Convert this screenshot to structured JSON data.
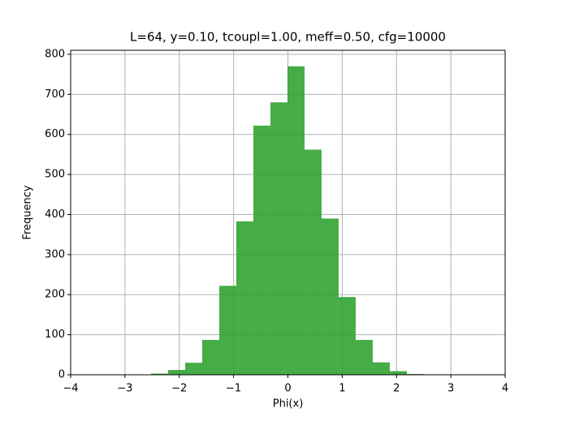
{
  "chart_data": {
    "type": "histogram",
    "title": "L=64, y=0.10, tcoupl=1.00, meff=0.50, cfg=10000",
    "xlabel": "Phi(x)",
    "ylabel": "Frequency",
    "bins": [
      -2.52,
      -2.206,
      -1.892,
      -1.578,
      -1.264,
      -0.95,
      -0.636,
      -0.322,
      -0.008,
      0.306,
      0.62,
      0.934,
      1.248,
      1.562,
      1.876,
      2.19,
      2.504
    ],
    "values": [
      3,
      12,
      30,
      87,
      222,
      383,
      622,
      680,
      770,
      562,
      390,
      194,
      87,
      31,
      9,
      2
    ],
    "color": "#2ca02c",
    "alpha": 0.88,
    "xlim": [
      -4,
      4
    ],
    "xticks": [
      {
        "value": -4,
        "label": "−4"
      },
      {
        "value": -3,
        "label": "−3"
      },
      {
        "value": -2,
        "label": "−2"
      },
      {
        "value": -1,
        "label": "−1"
      },
      0,
      1,
      2,
      3,
      4
    ],
    "ylim": [
      0,
      810
    ],
    "yticks": [
      0,
      100,
      200,
      300,
      400,
      500,
      600,
      700,
      800
    ],
    "grid": true
  }
}
